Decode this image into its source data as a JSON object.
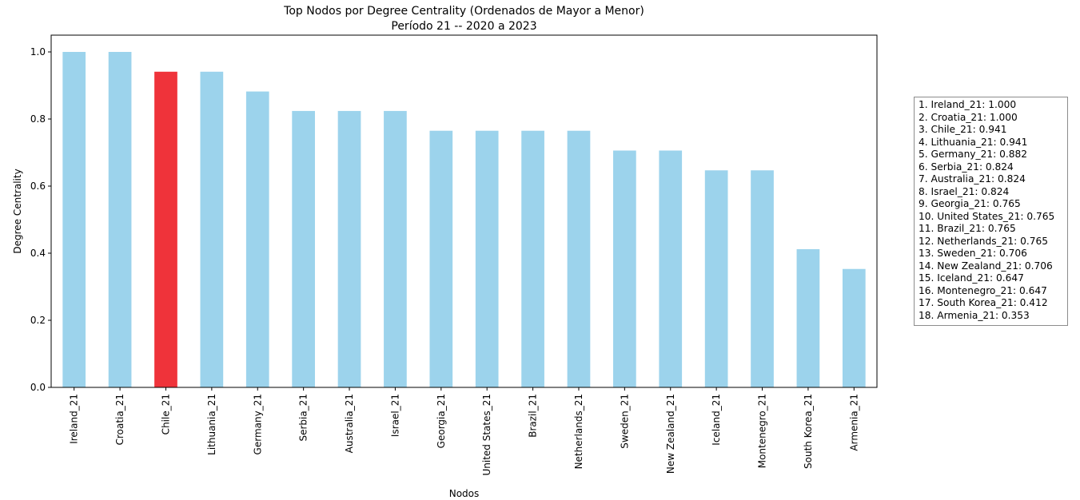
{
  "chart_data": {
    "type": "bar",
    "title": "Top Nodos por Degree Centrality (Ordenados de Mayor a Menor)",
    "subtitle": "Período 21 -- 2020 a 2023",
    "xlabel": "Nodos",
    "ylabel": "Degree Centrality",
    "ylim": [
      0,
      1.05
    ],
    "yticks": [
      0.0,
      0.2,
      0.4,
      0.6,
      0.8,
      1.0
    ],
    "ytick_labels": [
      "0.0",
      "0.2",
      "0.4",
      "0.6",
      "0.8",
      "1.0"
    ],
    "categories": [
      "Ireland_21",
      "Croatia_21",
      "Chile_21",
      "Lithuania_21",
      "Germany_21",
      "Serbia_21",
      "Australia_21",
      "Israel_21",
      "Georgia_21",
      "United States_21",
      "Brazil_21",
      "Netherlands_21",
      "Sweden_21",
      "New Zealand_21",
      "Iceland_21",
      "Montenegro_21",
      "South Korea_21",
      "Armenia_21"
    ],
    "values": [
      1.0,
      1.0,
      0.941,
      0.941,
      0.882,
      0.824,
      0.824,
      0.824,
      0.765,
      0.765,
      0.765,
      0.765,
      0.706,
      0.706,
      0.647,
      0.647,
      0.412,
      0.353
    ],
    "highlight_category": "Chile_21",
    "colors": {
      "bar": "#9cd3ec",
      "highlight": "#ef333a"
    },
    "grid": false,
    "legend_position": "right-outside",
    "legend_entries": [
      "1. Ireland_21: 1.000",
      "2. Croatia_21: 1.000",
      "3. Chile_21: 0.941",
      "4. Lithuania_21: 0.941",
      "5. Germany_21: 0.882",
      "6. Serbia_21: 0.824",
      "7. Australia_21: 0.824",
      "8. Israel_21: 0.824",
      "9. Georgia_21: 0.765",
      "10. United States_21: 0.765",
      "11. Brazil_21: 0.765",
      "12. Netherlands_21: 0.765",
      "13. Sweden_21: 0.706",
      "14. New Zealand_21: 0.706",
      "15. Iceland_21: 0.647",
      "16. Montenegro_21: 0.647",
      "17. South Korea_21: 0.412",
      "18. Armenia_21: 0.353"
    ]
  }
}
